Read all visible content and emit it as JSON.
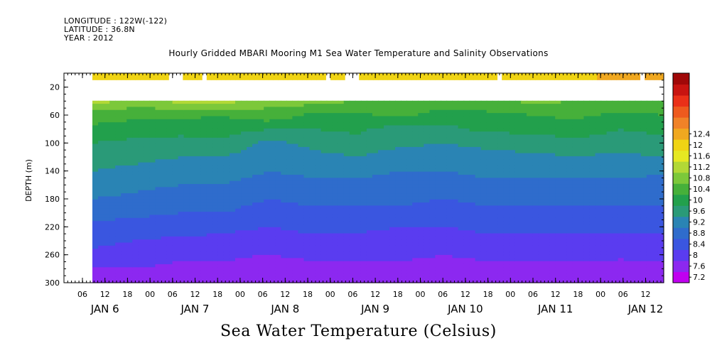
{
  "header": {
    "longitude": "LONGITUDE : 122W(-122)",
    "latitude": "LATITUDE : 36.8N",
    "year": "YEAR : 2012"
  },
  "chart_data": {
    "type": "heatmap",
    "title": "Hourly Gridded MBARI Mooring M1 Sea Water Temperature and Salinity Observations",
    "subtitle": "Sea Water Temperature (Celsius)",
    "ylabel": "DEPTH (m)",
    "xlabel": "",
    "y_inverted": true,
    "ylim": [
      0,
      300
    ],
    "yticks": [
      20,
      60,
      100,
      140,
      180,
      220,
      260,
      300
    ],
    "x_hour_ticks": [
      "06",
      "12",
      "18",
      "00",
      "06",
      "12",
      "18",
      "00",
      "06",
      "12",
      "18",
      "00",
      "06",
      "12",
      "18",
      "00",
      "06",
      "12",
      "18",
      "00",
      "06",
      "12",
      "18",
      "00",
      "06",
      "12"
    ],
    "x_day_labels": [
      "JAN 6",
      "JAN 7",
      "JAN 8",
      "JAN 9",
      "JAN 10",
      "JAN 11",
      "JAN 12"
    ],
    "colorbar_levels": [
      7.2,
      7.6,
      8,
      8.4,
      8.8,
      9.2,
      9.6,
      10,
      10.4,
      10.8,
      11.2,
      11.6,
      12,
      12.4
    ],
    "colorbar_colors": [
      "#c000f0",
      "#8c28f0",
      "#5a3cf0",
      "#3a56e0",
      "#2f6ccc",
      "#2a84b4",
      "#2a9a78",
      "#22a04c",
      "#46b03a",
      "#7cc83a",
      "#b2d836",
      "#e6e822",
      "#f0d414",
      "#f0a820",
      "#f08228",
      "#ee5a1e",
      "#ea3018",
      "#c81410",
      "#a00808"
    ],
    "depths": [
      10,
      40,
      60,
      80,
      100,
      120,
      140,
      160,
      180,
      200,
      220,
      240,
      260,
      280,
      300
    ],
    "hours": [
      0,
      12,
      24,
      36,
      48,
      60,
      72,
      84,
      96,
      108,
      120,
      132,
      144,
      156
    ],
    "surface_row": [
      11.8,
      12.0,
      11.8,
      11.6,
      11.8,
      11.9,
      11.7,
      11.6,
      11.8,
      11.7,
      11.6,
      11.8,
      12.2,
      12.4
    ],
    "temperature": [
      [
        null,
        null,
        null,
        null,
        null,
        null,
        null,
        null,
        null,
        null,
        null,
        null,
        null,
        null
      ],
      [
        11.0,
        10.6,
        10.9,
        11.0,
        10.5,
        10.6,
        10.4,
        10.4,
        10.3,
        10.3,
        10.5,
        10.4,
        10.4,
        10.3
      ],
      [
        10.2,
        10.1,
        10.1,
        10.0,
        10.3,
        9.9,
        9.9,
        10.1,
        9.8,
        9.9,
        10.0,
        10.1,
        9.9,
        10.0
      ],
      [
        9.9,
        9.8,
        9.7,
        9.8,
        9.6,
        9.6,
        9.7,
        9.4,
        9.5,
        9.7,
        9.7,
        9.8,
        9.6,
        9.7
      ],
      [
        9.6,
        9.5,
        9.5,
        9.5,
        9.1,
        9.3,
        9.4,
        9.3,
        9.2,
        9.3,
        9.4,
        9.5,
        9.4,
        9.5
      ],
      [
        9.4,
        9.3,
        9.2,
        9.2,
        8.9,
        9.1,
        9.2,
        9.0,
        9.0,
        9.1,
        9.1,
        9.2,
        9.1,
        9.2
      ],
      [
        9.2,
        9.1,
        9.0,
        9.0,
        8.8,
        8.9,
        8.9,
        8.8,
        8.8,
        8.9,
        8.9,
        8.9,
        8.9,
        8.9
      ],
      [
        9.0,
        8.9,
        8.8,
        8.8,
        8.6,
        8.7,
        8.7,
        8.7,
        8.6,
        8.7,
        8.7,
        8.7,
        8.7,
        8.6
      ],
      [
        8.8,
        8.7,
        8.6,
        8.6,
        8.4,
        8.5,
        8.5,
        8.5,
        8.4,
        8.5,
        8.5,
        8.5,
        8.5,
        8.5
      ],
      [
        8.6,
        8.5,
        8.4,
        8.4,
        8.2,
        8.3,
        8.3,
        8.3,
        8.2,
        8.3,
        8.3,
        8.3,
        8.3,
        8.3
      ],
      [
        8.3,
        8.2,
        8.2,
        8.1,
        8.0,
        8.1,
        8.1,
        8.0,
        8.0,
        8.1,
        8.1,
        8.1,
        8.1,
        8.1
      ],
      [
        8.1,
        8.0,
        7.9,
        7.9,
        7.8,
        7.9,
        7.9,
        7.8,
        7.8,
        7.9,
        7.9,
        7.9,
        7.9,
        7.9
      ],
      [
        7.9,
        7.8,
        7.7,
        7.7,
        7.6,
        7.7,
        7.7,
        7.7,
        7.6,
        7.7,
        7.7,
        7.7,
        7.7,
        7.7
      ],
      [
        7.6,
        7.6,
        7.5,
        7.5,
        7.3,
        7.5,
        7.5,
        7.5,
        7.4,
        7.5,
        7.5,
        7.5,
        7.4,
        7.5
      ],
      [
        7.4,
        7.4,
        7.3,
        7.4,
        7.2,
        7.4,
        7.4,
        7.4,
        7.3,
        7.4,
        7.4,
        7.4,
        7.3,
        7.4
      ]
    ]
  }
}
